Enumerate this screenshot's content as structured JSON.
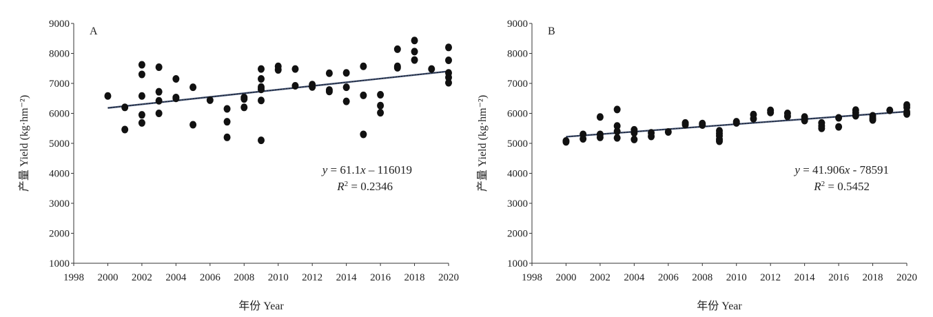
{
  "chart_data": [
    {
      "type": "scatter",
      "panel_label": "A",
      "xlabel": "年份 Year",
      "ylabel": "产量 Yield (kg·hm⁻²)",
      "xlim": [
        1998,
        2020
      ],
      "ylim": [
        1000,
        9000
      ],
      "xticks": [
        "1998",
        "2000",
        "2002",
        "2004",
        "2006",
        "2008",
        "2010",
        "2012",
        "2014",
        "2016",
        "2018",
        "2020"
      ],
      "yticks": [
        "1000",
        "2000",
        "3000",
        "4000",
        "5000",
        "6000",
        "7000",
        "8000",
        "9000"
      ],
      "grid": false,
      "points": [
        [
          2000,
          6580
        ],
        [
          2001,
          6200
        ],
        [
          2001,
          5460
        ],
        [
          2002,
          7620
        ],
        [
          2002,
          7300
        ],
        [
          2002,
          6580
        ],
        [
          2002,
          5950
        ],
        [
          2002,
          5680
        ],
        [
          2003,
          7540
        ],
        [
          2003,
          6720
        ],
        [
          2003,
          6420
        ],
        [
          2003,
          6000
        ],
        [
          2004,
          7150
        ],
        [
          2004,
          6530
        ],
        [
          2004,
          6500
        ],
        [
          2005,
          6870
        ],
        [
          2005,
          5620
        ],
        [
          2006,
          6440
        ],
        [
          2007,
          6150
        ],
        [
          2007,
          5720
        ],
        [
          2007,
          5200
        ],
        [
          2008,
          6530
        ],
        [
          2008,
          6480
        ],
        [
          2008,
          6200
        ],
        [
          2009,
          7480
        ],
        [
          2009,
          7150
        ],
        [
          2009,
          6880
        ],
        [
          2009,
          6800
        ],
        [
          2009,
          6430
        ],
        [
          2009,
          5100
        ],
        [
          2010,
          7570
        ],
        [
          2010,
          7450
        ],
        [
          2011,
          7480
        ],
        [
          2011,
          6920
        ],
        [
          2012,
          6960
        ],
        [
          2012,
          6880
        ],
        [
          2013,
          7340
        ],
        [
          2013,
          6780
        ],
        [
          2013,
          6730
        ],
        [
          2014,
          7350
        ],
        [
          2014,
          6870
        ],
        [
          2014,
          6400
        ],
        [
          2015,
          7570
        ],
        [
          2015,
          6600
        ],
        [
          2015,
          5300
        ],
        [
          2016,
          6620
        ],
        [
          2016,
          6260
        ],
        [
          2016,
          6020
        ],
        [
          2017,
          8140
        ],
        [
          2017,
          7570
        ],
        [
          2017,
          7520
        ],
        [
          2018,
          8430
        ],
        [
          2018,
          8060
        ],
        [
          2018,
          7780
        ],
        [
          2019,
          7480
        ],
        [
          2020,
          8200
        ],
        [
          2020,
          7770
        ],
        [
          2020,
          7350
        ],
        [
          2020,
          7200
        ],
        [
          2020,
          7020
        ]
      ],
      "trendline": {
        "slope": 61.1,
        "intercept": -116019
      },
      "equation_prefix": "y = 61.1",
      "equation_var": "x",
      "equation_suffix": " – 116019",
      "r2_label": "R",
      "r2_sup": "2",
      "r2_value": " = 0.2346"
    },
    {
      "type": "scatter",
      "panel_label": "B",
      "xlabel": "年份 Year",
      "ylabel": "产量 Yield (kg·hm⁻²)",
      "xlim": [
        1998,
        2020
      ],
      "ylim": [
        1000,
        9000
      ],
      "xticks": [
        "1998",
        "2000",
        "2002",
        "2004",
        "2006",
        "2008",
        "2010",
        "2012",
        "2014",
        "2016",
        "2018",
        "2020"
      ],
      "yticks": [
        "1000",
        "2000",
        "3000",
        "4000",
        "5000",
        "6000",
        "7000",
        "8000",
        "9000"
      ],
      "grid": false,
      "points": [
        [
          2000,
          5080
        ],
        [
          2000,
          5050
        ],
        [
          2001,
          5300
        ],
        [
          2001,
          5150
        ],
        [
          2002,
          5880
        ],
        [
          2002,
          5300
        ],
        [
          2002,
          5200
        ],
        [
          2003,
          6130
        ],
        [
          2003,
          5580
        ],
        [
          2003,
          5400
        ],
        [
          2003,
          5180
        ],
        [
          2004,
          5450
        ],
        [
          2004,
          5350
        ],
        [
          2004,
          5130
        ],
        [
          2005,
          5350
        ],
        [
          2005,
          5230
        ],
        [
          2006,
          5380
        ],
        [
          2007,
          5680
        ],
        [
          2007,
          5620
        ],
        [
          2008,
          5660
        ],
        [
          2008,
          5610
        ],
        [
          2009,
          5420
        ],
        [
          2009,
          5330
        ],
        [
          2009,
          5250
        ],
        [
          2009,
          5130
        ],
        [
          2009,
          5070
        ],
        [
          2010,
          5720
        ],
        [
          2010,
          5680
        ],
        [
          2011,
          5960
        ],
        [
          2011,
          5820
        ],
        [
          2012,
          6100
        ],
        [
          2012,
          6030
        ],
        [
          2013,
          6000
        ],
        [
          2013,
          5900
        ],
        [
          2014,
          5880
        ],
        [
          2014,
          5800
        ],
        [
          2014,
          5760
        ],
        [
          2015,
          5680
        ],
        [
          2015,
          5580
        ],
        [
          2015,
          5500
        ],
        [
          2016,
          5850
        ],
        [
          2016,
          5550
        ],
        [
          2017,
          6110
        ],
        [
          2017,
          6020
        ],
        [
          2017,
          5920
        ],
        [
          2018,
          5920
        ],
        [
          2018,
          5840
        ],
        [
          2018,
          5780
        ],
        [
          2019,
          6100
        ],
        [
          2020,
          6280
        ],
        [
          2020,
          6200
        ],
        [
          2020,
          6050
        ],
        [
          2020,
          5980
        ]
      ],
      "trendline": {
        "slope": 41.906,
        "intercept": -78591
      },
      "equation_prefix": "y = 41.906",
      "equation_var": "x",
      "equation_suffix": " - 78591",
      "r2_label": "R",
      "r2_sup": "2",
      "r2_value": " = 0.5452"
    }
  ]
}
